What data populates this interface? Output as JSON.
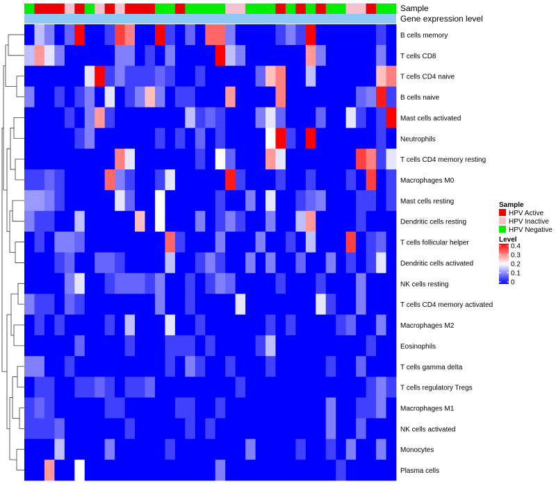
{
  "chart_data": {
    "type": "heatmap",
    "title": "",
    "annotation_tracks": [
      "Sample",
      "Gene expression level"
    ],
    "rows": [
      "B cells memory",
      "T cells CD8",
      "T cells CD4 naive",
      "B cells naive",
      "Mast cells activated",
      "Neutrophils",
      "T cells CD4 memory resting",
      "Macrophages M0",
      "Mast cells resting",
      "Dendritic cells resting",
      "T cells follicular helper",
      "Dendritic cells activated",
      "NK cells resting",
      "T cells CD4 memory activated",
      "Macrophages M2",
      "Eosinophils",
      "T cells gamma delta",
      "T cells regulatory  Tregs",
      "Macrophages M1",
      "NK cells activated",
      "Monocytes",
      "Plasma cells"
    ],
    "sample_groups": [
      "HPV Negative",
      "HPV Active",
      "HPV Active",
      "HPV Active",
      "HPV Inactive",
      "HPV Active",
      "HPV Negative",
      "HPV Inactive",
      "HPV Active",
      "HPV Inactive",
      "HPV Active",
      "HPV Active",
      "HPV Active",
      "HPV Negative",
      "HPV Negative",
      "HPV Active",
      "HPV Negative",
      "HPV Negative",
      "HPV Negative",
      "HPV Negative",
      "HPV Inactive",
      "HPV Inactive",
      "HPV Negative",
      "HPV Negative",
      "HPV Negative",
      "HPV Active",
      "HPV Negative",
      "HPV Active",
      "HPV Negative",
      "HPV Active",
      "HPV Negative",
      "HPV Negative",
      "HPV Inactive",
      "HPV Inactive",
      "HPV Active",
      "HPV Negative",
      "HPV Negative"
    ],
    "legends": {
      "sample": {
        "title": "Sample",
        "entries": [
          {
            "label": "HPV Active",
            "color": "#ee0000"
          },
          {
            "label": "HPV Inactive",
            "color": "#f3c1cf"
          },
          {
            "label": "HPV Negative",
            "color": "#00ee00"
          }
        ]
      },
      "level": {
        "title": "Level",
        "ticks": [
          "0.4",
          "0.3",
          "0.2",
          "0.1",
          "0"
        ],
        "min": 0,
        "max": 0.4,
        "colors": [
          "#0000ff",
          "#ffffff",
          "#ff0000"
        ]
      }
    },
    "values": [
      [
        0.0,
        0.15,
        0.1,
        0.0,
        0.08,
        0.4,
        0.0,
        0.0,
        0.05,
        0.35,
        0.3,
        0.0,
        0.0,
        0.4,
        0.05,
        0.0,
        0.08,
        0.0,
        0.32,
        0.32,
        0.1,
        0.0,
        0.0,
        0.0,
        0.0,
        0.05,
        0.1,
        0.05,
        0.4,
        0.0,
        0.0,
        0.0,
        0.0,
        0.0,
        0.0,
        0.05,
        0.0
      ],
      [
        0.15,
        0.28,
        0.18,
        0.1,
        0.0,
        0.0,
        0.0,
        0.0,
        0.0,
        0.1,
        0.1,
        0.0,
        0.05,
        0.0,
        0.1,
        0.0,
        0.0,
        0.0,
        0.0,
        0.4,
        0.15,
        0.1,
        0.0,
        0.0,
        0.0,
        0.0,
        0.0,
        0.0,
        0.28,
        0.1,
        0.0,
        0.0,
        0.0,
        0.0,
        0.0,
        0.1,
        0.0
      ],
      [
        0.0,
        0.0,
        0.0,
        0.0,
        0.0,
        0.0,
        0.18,
        0.4,
        0.05,
        0.1,
        0.05,
        0.05,
        0.05,
        0.08,
        0.05,
        0.0,
        0.0,
        0.05,
        0.0,
        0.0,
        0.0,
        0.0,
        0.0,
        0.08,
        0.25,
        0.3,
        0.0,
        0.0,
        0.15,
        0.0,
        0.0,
        0.0,
        0.0,
        0.0,
        0.0,
        0.25,
        0.3
      ],
      [
        0.1,
        0.0,
        0.0,
        0.05,
        0.0,
        0.05,
        0.1,
        0.0,
        0.18,
        0.0,
        0.05,
        0.1,
        0.25,
        0.1,
        0.0,
        0.05,
        0.05,
        0.0,
        0.0,
        0.0,
        0.28,
        0.0,
        0.0,
        0.0,
        0.0,
        0.3,
        0.0,
        0.0,
        0.0,
        0.0,
        0.0,
        0.0,
        0.0,
        0.08,
        0.1,
        0.38,
        0.05
      ],
      [
        0.0,
        0.0,
        0.0,
        0.0,
        0.05,
        0.0,
        0.1,
        0.28,
        0.05,
        0.0,
        0.0,
        0.0,
        0.0,
        0.0,
        0.0,
        0.0,
        0.15,
        0.05,
        0.08,
        0.05,
        0.0,
        0.0,
        0.0,
        0.1,
        0.18,
        0.08,
        0.0,
        0.0,
        0.0,
        0.08,
        0.0,
        0.0,
        0.18,
        0.05,
        0.0,
        0.05,
        0.4
      ],
      [
        0.0,
        0.0,
        0.0,
        0.0,
        0.0,
        0.05,
        0.1,
        0.0,
        0.0,
        0.0,
        0.0,
        0.0,
        0.0,
        0.05,
        0.0,
        0.05,
        0.0,
        0.08,
        0.0,
        0.05,
        0.0,
        0.0,
        0.0,
        0.0,
        0.2,
        0.4,
        0.05,
        0.0,
        0.4,
        0.0,
        0.0,
        0.0,
        0.0,
        0.0,
        0.0,
        0.05,
        0.0
      ],
      [
        0.0,
        0.0,
        0.0,
        0.0,
        0.0,
        0.0,
        0.0,
        0.0,
        0.0,
        0.3,
        0.18,
        0.0,
        0.0,
        0.0,
        0.0,
        0.0,
        0.0,
        0.05,
        0.0,
        0.2,
        0.08,
        0.0,
        0.0,
        0.0,
        0.28,
        0.18,
        0.0,
        0.0,
        0.0,
        0.0,
        0.0,
        0.0,
        0.0,
        0.35,
        0.3,
        0.05,
        0.18
      ],
      [
        0.05,
        0.05,
        0.08,
        0.05,
        0.0,
        0.0,
        0.0,
        0.0,
        0.32,
        0.1,
        0.05,
        0.0,
        0.0,
        0.05,
        0.18,
        0.0,
        0.0,
        0.0,
        0.0,
        0.0,
        0.38,
        0.05,
        0.0,
        0.0,
        0.0,
        0.05,
        0.0,
        0.0,
        0.05,
        0.0,
        0.0,
        0.0,
        0.05,
        0.0,
        0.35,
        0.0,
        0.05
      ],
      [
        0.12,
        0.12,
        0.1,
        0.05,
        0.0,
        0.0,
        0.0,
        0.0,
        0.0,
        0.18,
        0.08,
        0.0,
        0.0,
        0.2,
        0.0,
        0.0,
        0.0,
        0.0,
        0.0,
        0.05,
        0.0,
        0.0,
        0.1,
        0.0,
        0.18,
        0.0,
        0.0,
        0.05,
        0.08,
        0.1,
        0.0,
        0.0,
        0.0,
        0.05,
        0.05,
        0.0,
        0.05
      ],
      [
        0.1,
        0.05,
        0.05,
        0.0,
        0.0,
        0.15,
        0.0,
        0.0,
        0.0,
        0.0,
        0.0,
        0.25,
        0.0,
        0.2,
        0.0,
        0.0,
        0.0,
        0.1,
        0.0,
        0.05,
        0.1,
        0.05,
        0.0,
        0.0,
        0.1,
        0.0,
        0.0,
        0.15,
        0.28,
        0.0,
        0.0,
        0.0,
        0.0,
        0.05,
        0.0,
        0.0,
        0.0
      ],
      [
        0.0,
        0.05,
        0.0,
        0.1,
        0.1,
        0.08,
        0.0,
        0.0,
        0.0,
        0.0,
        0.0,
        0.0,
        0.0,
        0.0,
        0.32,
        0.05,
        0.0,
        0.0,
        0.0,
        0.1,
        0.0,
        0.0,
        0.0,
        0.1,
        0.0,
        0.0,
        0.05,
        0.0,
        0.15,
        0.0,
        0.0,
        0.0,
        0.35,
        0.0,
        0.05,
        0.08,
        0.0
      ],
      [
        0.0,
        0.0,
        0.0,
        0.05,
        0.08,
        0.0,
        0.0,
        0.08,
        0.08,
        0.05,
        0.0,
        0.0,
        0.0,
        0.0,
        0.15,
        0.0,
        0.0,
        0.05,
        0.1,
        0.05,
        0.0,
        0.0,
        0.1,
        0.0,
        0.1,
        0.0,
        0.0,
        0.08,
        0.0,
        0.0,
        0.1,
        0.0,
        0.05,
        0.0,
        0.05,
        0.18,
        0.0
      ],
      [
        0.0,
        0.0,
        0.0,
        0.0,
        0.1,
        0.18,
        0.0,
        0.0,
        0.05,
        0.08,
        0.08,
        0.08,
        0.05,
        0.1,
        0.0,
        0.0,
        0.05,
        0.0,
        0.05,
        0.1,
        0.08,
        0.0,
        0.0,
        0.0,
        0.0,
        0.05,
        0.0,
        0.0,
        0.0,
        0.05,
        0.0,
        0.0,
        0.0,
        0.1,
        0.0,
        0.0,
        0.0
      ],
      [
        0.1,
        0.05,
        0.05,
        0.0,
        0.08,
        0.05,
        0.0,
        0.0,
        0.0,
        0.0,
        0.0,
        0.0,
        0.0,
        0.1,
        0.0,
        0.0,
        0.05,
        0.0,
        0.0,
        0.0,
        0.0,
        0.18,
        0.0,
        0.0,
        0.0,
        0.0,
        0.0,
        0.0,
        0.0,
        0.18,
        0.05,
        0.0,
        0.0,
        0.1,
        0.0,
        0.0,
        0.0
      ],
      [
        0.0,
        0.05,
        0.0,
        0.05,
        0.0,
        0.0,
        0.0,
        0.0,
        0.05,
        0.0,
        0.15,
        0.0,
        0.0,
        0.0,
        0.18,
        0.0,
        0.0,
        0.05,
        0.0,
        0.0,
        0.0,
        0.0,
        0.0,
        0.0,
        0.05,
        0.0,
        0.05,
        0.0,
        0.0,
        0.0,
        0.0,
        0.05,
        0.08,
        0.0,
        0.0,
        0.1,
        0.0
      ],
      [
        0.0,
        0.0,
        0.0,
        0.0,
        0.0,
        0.08,
        0.0,
        0.0,
        0.0,
        0.0,
        0.05,
        0.0,
        0.0,
        0.0,
        0.05,
        0.05,
        0.05,
        0.0,
        0.05,
        0.0,
        0.0,
        0.0,
        0.0,
        0.05,
        0.15,
        0.0,
        0.0,
        0.0,
        0.0,
        0.0,
        0.0,
        0.0,
        0.0,
        0.0,
        0.05,
        0.0,
        0.0
      ],
      [
        0.1,
        0.1,
        0.0,
        0.0,
        0.05,
        0.0,
        0.0,
        0.0,
        0.0,
        0.0,
        0.0,
        0.0,
        0.0,
        0.0,
        0.05,
        0.0,
        0.1,
        0.05,
        0.0,
        0.0,
        0.05,
        0.0,
        0.0,
        0.0,
        0.05,
        0.0,
        0.0,
        0.0,
        0.0,
        0.0,
        0.05,
        0.0,
        0.0,
        0.08,
        0.0,
        0.0,
        0.0
      ],
      [
        0.0,
        0.05,
        0.05,
        0.0,
        0.0,
        0.05,
        0.05,
        0.08,
        0.05,
        0.0,
        0.05,
        0.05,
        0.08,
        0.0,
        0.0,
        0.0,
        0.0,
        0.0,
        0.0,
        0.0,
        0.0,
        0.05,
        0.0,
        0.0,
        0.0,
        0.0,
        0.0,
        0.0,
        0.0,
        0.0,
        0.0,
        0.0,
        0.0,
        0.0,
        0.05,
        0.1,
        0.05
      ],
      [
        0.05,
        0.08,
        0.05,
        0.0,
        0.0,
        0.0,
        0.0,
        0.0,
        0.05,
        0.05,
        0.0,
        0.0,
        0.0,
        0.0,
        0.0,
        0.05,
        0.05,
        0.0,
        0.0,
        0.05,
        0.0,
        0.0,
        0.0,
        0.0,
        0.0,
        0.0,
        0.0,
        0.0,
        0.0,
        0.0,
        0.1,
        0.0,
        0.0,
        0.05,
        0.05,
        0.1,
        0.0
      ],
      [
        0.05,
        0.05,
        0.05,
        0.08,
        0.0,
        0.0,
        0.0,
        0.0,
        0.0,
        0.0,
        0.05,
        0.0,
        0.0,
        0.0,
        0.0,
        0.0,
        0.05,
        0.0,
        0.05,
        0.0,
        0.0,
        0.0,
        0.0,
        0.0,
        0.0,
        0.0,
        0.0,
        0.0,
        0.0,
        0.0,
        0.1,
        0.0,
        0.0,
        0.08,
        0.0,
        0.0,
        0.0
      ],
      [
        0.0,
        0.0,
        0.0,
        0.15,
        0.0,
        0.0,
        0.0,
        0.0,
        0.1,
        0.0,
        0.0,
        0.0,
        0.0,
        0.0,
        0.05,
        0.0,
        0.0,
        0.0,
        0.0,
        0.0,
        0.0,
        0.0,
        0.1,
        0.0,
        0.0,
        0.0,
        0.0,
        0.05,
        0.0,
        0.0,
        0.05,
        0.0,
        0.1,
        0.0,
        0.0,
        0.1,
        0.0
      ],
      [
        0.0,
        0.0,
        0.28,
        0.0,
        0.0,
        0.2,
        0.0,
        0.0,
        0.0,
        0.0,
        0.0,
        0.0,
        0.0,
        0.0,
        0.0,
        0.0,
        0.0,
        0.0,
        0.0,
        0.1,
        0.0,
        0.0,
        0.0,
        0.0,
        0.0,
        0.0,
        0.0,
        0.0,
        0.0,
        0.0,
        0.0,
        0.05,
        0.0,
        0.0,
        0.0,
        0.0,
        0.0
      ]
    ]
  }
}
